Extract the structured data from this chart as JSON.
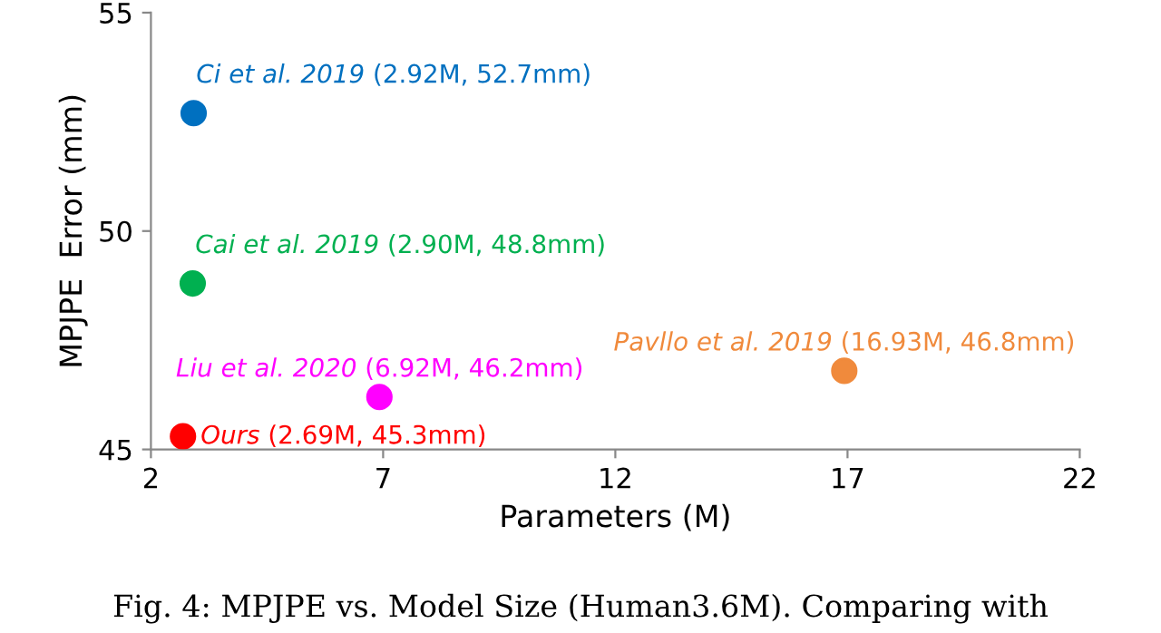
{
  "chart_data": {
    "type": "scatter",
    "xlabel": "Parameters (M)",
    "ylabel": "MPJPE  Error (mm)",
    "xlim": [
      2,
      22
    ],
    "xticks": [
      2,
      7,
      12,
      17,
      22
    ],
    "ylim": [
      45,
      55
    ],
    "yticks": [
      45,
      50,
      55
    ],
    "grid": false,
    "marker": "circle",
    "series": [
      {
        "name": "Ci et al. 2019",
        "color": "#0070c0",
        "x": [
          2.92
        ],
        "values": [
          52.7
        ]
      },
      {
        "name": "Cai et al. 2019",
        "color": "#00b050",
        "x": [
          2.9
        ],
        "values": [
          48.8
        ]
      },
      {
        "name": "Pavllo et al. 2019",
        "color": "#f08a3c",
        "x": [
          16.93
        ],
        "values": [
          46.8
        ]
      },
      {
        "name": "Liu et al. 2020",
        "color": "#ff00ff",
        "x": [
          6.92
        ],
        "values": [
          46.2
        ]
      },
      {
        "name": "Ours",
        "color": "#ff0000",
        "x": [
          2.69
        ],
        "values": [
          45.3
        ]
      }
    ],
    "annotations": [
      "(2.92M, 52.7mm)",
      "(2.90M, 48.8mm)",
      "(16.93M, 46.8mm)",
      "(6.92M, 46.2mm)",
      "(2.69M, 45.3mm)",
      "Fig. 4: MPJPE vs. Model Size (Human3.6M). Comparing with"
    ]
  }
}
